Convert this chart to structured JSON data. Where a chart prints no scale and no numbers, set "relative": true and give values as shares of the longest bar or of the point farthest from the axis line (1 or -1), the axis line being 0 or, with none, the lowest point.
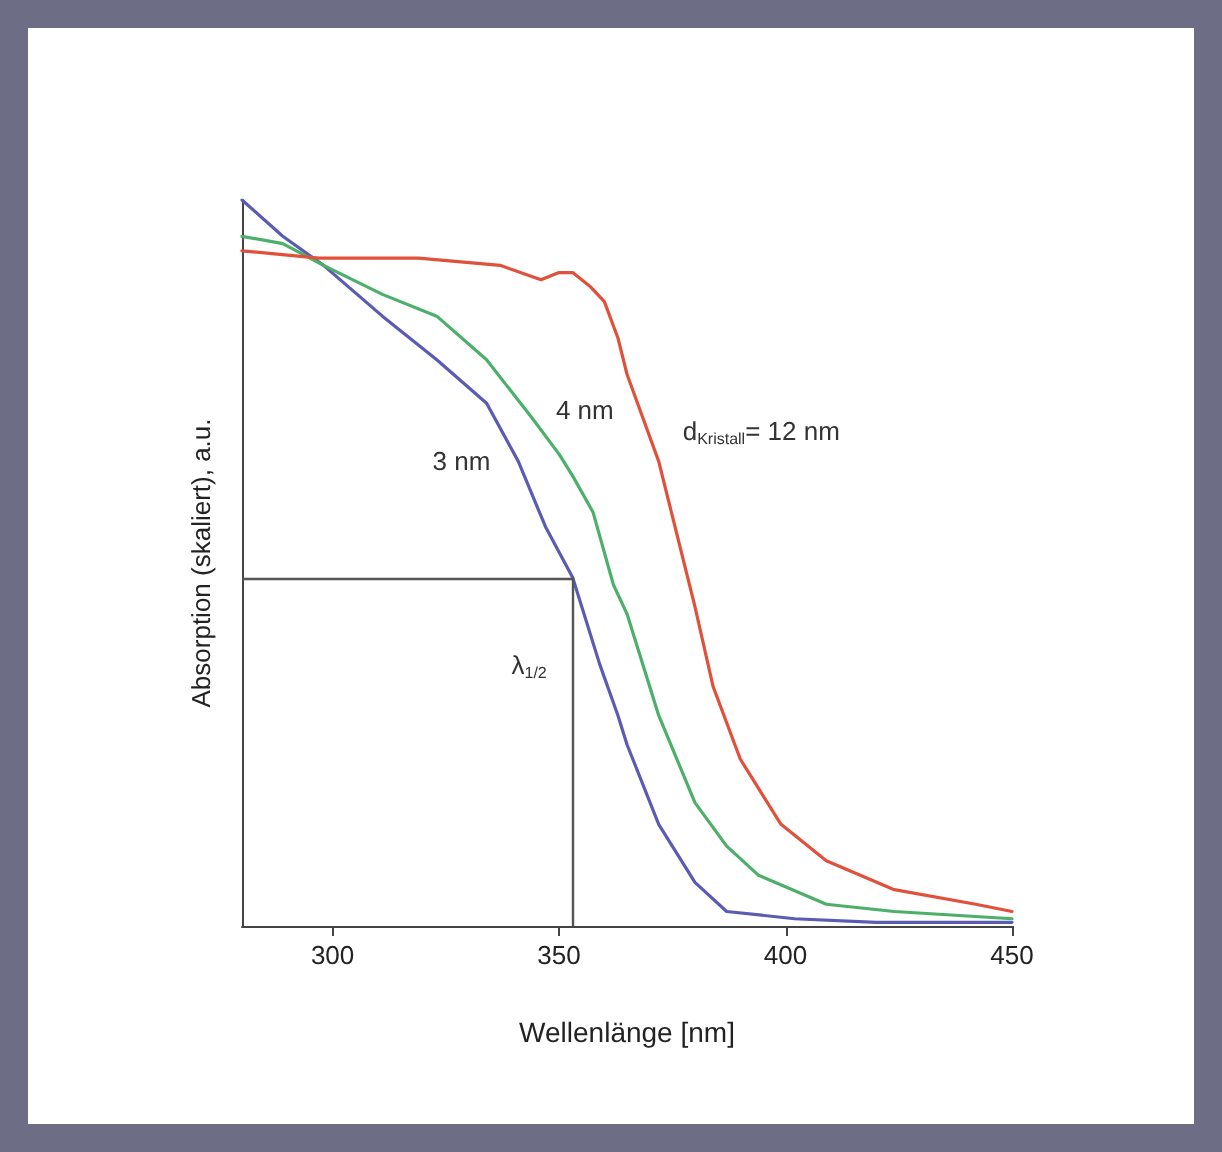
{
  "chart_data": {
    "type": "line",
    "relative": true,
    "xlabel": "Wellenlänge [nm]",
    "ylabel": "Absorption (skaliert), a.u.",
    "xlim": [
      280,
      450
    ],
    "xticks": [
      300,
      350,
      400,
      450
    ],
    "grid": false,
    "legend": false,
    "marker": "none",
    "line_style": "solid",
    "series": [
      {
        "name": "3 nm",
        "color": "#5a5cb4",
        "x": [
          280,
          289,
          298,
          311,
          323,
          334,
          341,
          347,
          353,
          359,
          363,
          365,
          372,
          380,
          387,
          402,
          420,
          450
        ],
        "values": [
          1,
          0.95,
          0.91,
          0.84,
          0.78,
          0.72,
          0.64,
          0.55,
          0.48,
          0.36,
          0.29,
          0.25,
          0.14,
          0.06,
          0.02,
          0.01,
          0.005,
          0.005
        ]
      },
      {
        "name": "4 nm",
        "color": "#4caf6a",
        "x": [
          280,
          289,
          298,
          311,
          323,
          334,
          344,
          350,
          353,
          357.5,
          362,
          365,
          372,
          380,
          387,
          394,
          409,
          424,
          450
        ],
        "values": [
          0.95,
          0.94,
          0.91,
          0.87,
          0.84,
          0.78,
          0.7,
          0.65,
          0.62,
          0.57,
          0.47,
          0.43,
          0.29,
          0.17,
          0.11,
          0.07,
          0.03,
          0.02,
          0.01
        ]
      },
      {
        "name": "d$_{Kristall}$= 12 nm",
        "color": "#e0503a",
        "x": [
          280,
          297,
          319,
          337,
          346,
          350,
          353,
          357,
          360,
          363,
          365,
          372,
          380,
          384,
          390,
          399,
          409,
          424,
          442,
          450
        ],
        "values": [
          0.93,
          0.92,
          0.92,
          0.91,
          0.89,
          0.9,
          0.9,
          0.88,
          0.86,
          0.81,
          0.76,
          0.64,
          0.44,
          0.33,
          0.23,
          0.14,
          0.09,
          0.05,
          0.03,
          0.02
        ]
      }
    ],
    "ref_lines": [
      {
        "axis": "y",
        "value": 0.48,
        "label": null
      },
      {
        "axis": "x",
        "value": 353,
        "label": "λ$_{1/2}$"
      }
    ]
  }
}
